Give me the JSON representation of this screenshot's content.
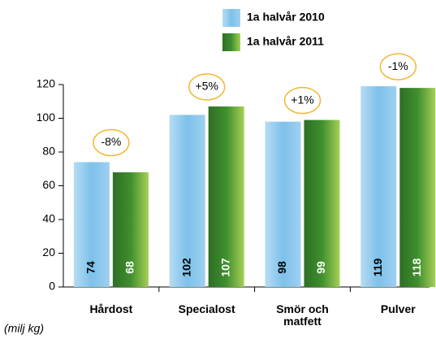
{
  "chart_data": {
    "type": "bar",
    "categories": [
      "Hårdost",
      "Specialost",
      "Smör och matfett",
      "Pulver"
    ],
    "series": [
      {
        "name": "1a halvår 2010",
        "color": "#7dc1ea",
        "values": [
          74,
          102,
          98,
          119
        ]
      },
      {
        "name": "1a halvår 2011",
        "color": "#3f8f2e",
        "values": [
          68,
          107,
          99,
          118
        ]
      }
    ],
    "annotations": [
      "-8%",
      "+5%",
      "+1%",
      "-1%"
    ],
    "y_label": "(milj kg)",
    "ylim": [
      0,
      120
    ],
    "yticks": [
      0,
      20,
      40,
      60,
      80,
      100,
      120
    ],
    "grid": false,
    "legend": "top"
  }
}
